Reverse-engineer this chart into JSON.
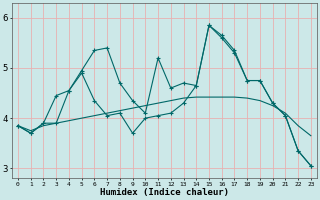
{
  "xlabel": "Humidex (Indice chaleur)",
  "background_color": "#cce8e8",
  "grid_color": "#e8b0b0",
  "line_color": "#006868",
  "xlim": [
    -0.5,
    23.5
  ],
  "ylim": [
    2.8,
    6.3
  ],
  "yticks": [
    3,
    4,
    5,
    6
  ],
  "xticks": [
    0,
    1,
    2,
    3,
    4,
    5,
    6,
    7,
    8,
    9,
    10,
    11,
    12,
    13,
    14,
    15,
    16,
    17,
    18,
    19,
    20,
    21,
    22,
    23
  ],
  "series": [
    {
      "x": [
        0,
        1,
        2,
        3,
        4,
        5,
        6,
        7,
        8,
        9,
        10,
        11,
        12,
        13,
        14,
        15,
        16,
        17,
        18,
        19,
        20,
        21,
        22,
        23
      ],
      "y": [
        3.85,
        3.7,
        3.9,
        3.9,
        4.55,
        4.95,
        5.35,
        5.4,
        4.7,
        4.35,
        4.1,
        5.2,
        4.6,
        4.7,
        4.65,
        5.85,
        5.65,
        5.35,
        4.75,
        4.75,
        4.3,
        4.05,
        3.35,
        3.05
      ]
    },
    {
      "x": [
        0,
        1,
        2,
        3,
        4,
        5,
        6,
        7,
        8,
        9,
        10,
        11,
        12,
        13,
        14,
        15,
        16,
        17,
        18,
        19,
        20,
        21,
        22,
        23
      ],
      "y": [
        3.85,
        3.75,
        3.85,
        3.9,
        3.95,
        4.0,
        4.05,
        4.1,
        4.15,
        4.2,
        4.25,
        4.3,
        4.35,
        4.4,
        4.42,
        4.42,
        4.42,
        4.42,
        4.4,
        4.35,
        4.25,
        4.1,
        3.85,
        3.65
      ]
    },
    {
      "x": [
        0,
        1,
        2,
        3,
        4,
        5,
        6,
        7,
        8,
        9,
        10,
        11,
        12,
        13,
        14,
        15,
        16,
        17,
        18,
        19,
        20,
        21,
        22,
        23
      ],
      "y": [
        3.85,
        3.7,
        3.9,
        4.45,
        4.55,
        4.9,
        4.35,
        4.05,
        4.1,
        3.7,
        4.0,
        4.05,
        4.1,
        4.3,
        4.65,
        5.85,
        5.6,
        5.3,
        4.75,
        4.75,
        4.3,
        4.05,
        3.35,
        3.05
      ]
    }
  ]
}
